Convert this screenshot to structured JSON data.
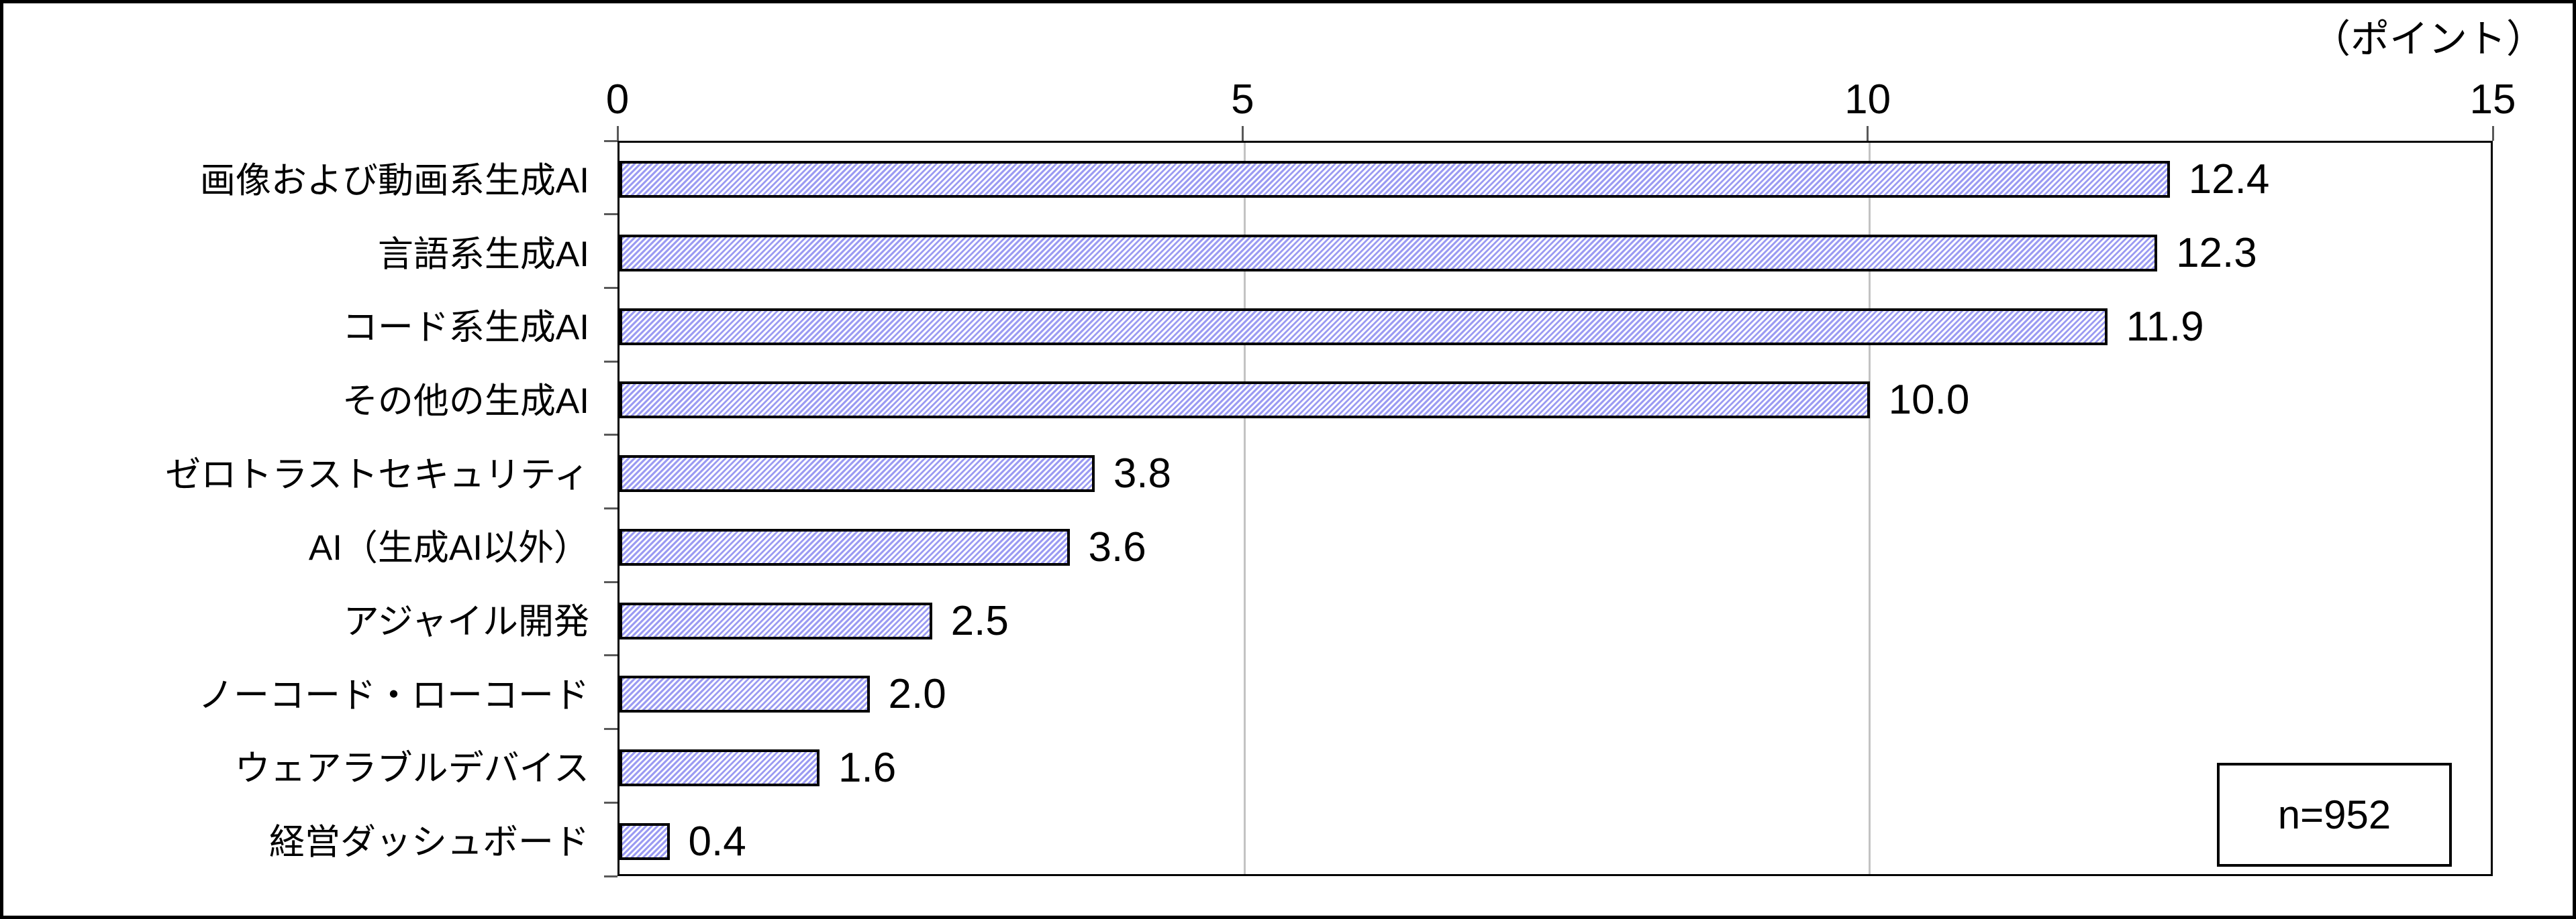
{
  "header": {
    "unit_label": "（ポイント）"
  },
  "annotation": {
    "sample_size_label": "n=952"
  },
  "chart_data": {
    "type": "bar",
    "orientation": "horizontal",
    "title": "",
    "xlabel": "（ポイント）",
    "ylabel": "",
    "xlim": [
      0,
      15
    ],
    "xticks": [
      0,
      5,
      10,
      15
    ],
    "gridlines_at": [
      5,
      10
    ],
    "grid": "vertical",
    "legend_position": "none",
    "categories": [
      "画像および動画系生成AI",
      "言語系生成AI",
      "コード系生成AI",
      "その他の生成AI",
      "ゼロトラストセキュリティ",
      "AI（生成AI以外）",
      "アジャイル開発",
      "ノーコード・ローコード",
      "ウェアラブルデバイス",
      "経営ダッシュボード"
    ],
    "values": [
      12.4,
      12.3,
      11.9,
      10.0,
      3.8,
      3.6,
      2.5,
      2.0,
      1.6,
      0.4
    ],
    "value_labels": [
      "12.4",
      "12.3",
      "11.9",
      "10.0",
      "3.8",
      "3.6",
      "2.5",
      "2.0",
      "1.6",
      "0.4"
    ],
    "annotation": "n=952",
    "colors": {
      "bar_hatch_stripe": "#9b9bf2",
      "bar_hatch_background": "#ffffff",
      "bar_border": "#000000",
      "plot_border": "#000000",
      "gridline": "#c3c3c3",
      "tick": "#595959",
      "text": "#000000",
      "background": "#ffffff"
    }
  }
}
